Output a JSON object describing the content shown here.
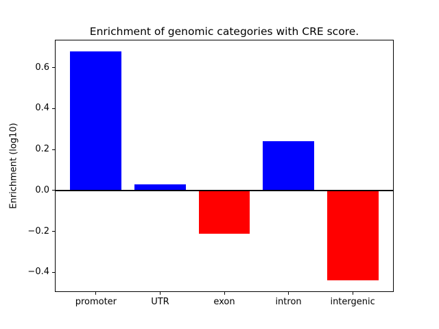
{
  "figure": {
    "background": "#ffffff"
  },
  "chart_data": {
    "type": "bar",
    "title": "Enrichment of genomic categories with CRE score.",
    "xlabel": "",
    "ylabel": "Enrichment (log10)",
    "categories": [
      "promoter",
      "UTR",
      "exon",
      "intron",
      "intergenic"
    ],
    "values": [
      0.68,
      0.03,
      -0.21,
      0.24,
      -0.44
    ],
    "bar_colors": [
      "#0000ff",
      "#0000ff",
      "#ff0000",
      "#0000ff",
      "#ff0000"
    ],
    "positive_color": "#0000ff",
    "negative_color": "#ff0000",
    "axis_color": "#000000",
    "yticks": [
      -0.4,
      -0.2,
      0.0,
      0.2,
      0.4,
      0.6
    ],
    "ytick_labels": [
      "−0.4",
      "−0.2",
      "0.0",
      "0.2",
      "0.4",
      "0.6"
    ],
    "ylim": [
      -0.496,
      0.736
    ],
    "xlim": [
      -0.64,
      4.64
    ],
    "bar_width": 0.8,
    "zero_line": true,
    "grid": false,
    "legend_position": "none"
  }
}
